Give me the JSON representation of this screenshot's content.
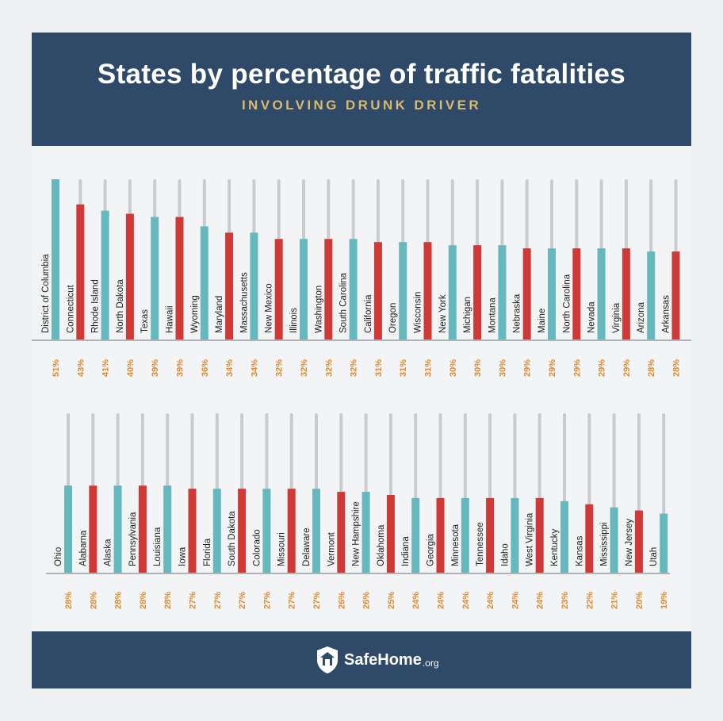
{
  "header": {
    "title": "States by percentage of traffic fatalities",
    "subtitle": "INVOLVING DRUNK DRIVER"
  },
  "footer": {
    "brand": "SafeHome",
    "brand_suffix": ".org",
    "logo_icon": "house-shield-icon"
  },
  "colors": {
    "teal": "#66b8bf",
    "red": "#cf3a37",
    "track": "#c9cbcd",
    "label": "#e08a2c",
    "header_bg": "#2e4a68",
    "subtitle": "#d9b96d"
  },
  "chart_data": {
    "type": "bar",
    "orientation": "vertical",
    "ylim": [
      0,
      51
    ],
    "panels": [
      {
        "categories": [
          "District of Columbia",
          "Connecticut",
          "Rhode Island",
          "North Dakota",
          "Texas",
          "Hawaii",
          "Wyoming",
          "Maryland",
          "Massachusetts",
          "New Mexico",
          "Illinois",
          "Washington",
          "South Carolina",
          "California",
          "Oregon",
          "Wisconsin",
          "New York",
          "Michigan",
          "Montana",
          "Nebraska",
          "Maine",
          "North Carolina",
          "Nevada",
          "Virginia",
          "Arizona",
          "Arkansas"
        ],
        "values": [
          51,
          43,
          41,
          40,
          39,
          39,
          36,
          34,
          34,
          32,
          32,
          32,
          32,
          31,
          31,
          31,
          30,
          30,
          30,
          29,
          29,
          29,
          29,
          29,
          28,
          28
        ],
        "labels": [
          "51%",
          "43%",
          "41%",
          "40%",
          "39%",
          "39%",
          "36%",
          "34%",
          "34%",
          "32%",
          "32%",
          "32%",
          "32%",
          "31%",
          "31%",
          "31%",
          "30%",
          "30%",
          "30%",
          "29%",
          "29%",
          "29%",
          "29%",
          "29%",
          "28%",
          "28%"
        ]
      },
      {
        "categories": [
          "Ohio",
          "Alabama",
          "Alaska",
          "Pennsylvania",
          "Louisiana",
          "Iowa",
          "Florida",
          "South Dakota",
          "Colorado",
          "Missouri",
          "Delaware",
          "Vermont",
          "New Hampshire",
          "Oklahoma",
          "Indiana",
          "Georgia",
          "Minnesota",
          "Tennessee",
          "Idaho",
          "West Virginia",
          "Kentucky",
          "Kansas",
          "Mississippi",
          "New Jersey",
          "Utah"
        ],
        "values": [
          28,
          28,
          28,
          28,
          28,
          27,
          27,
          27,
          27,
          27,
          27,
          26,
          26,
          25,
          24,
          24,
          24,
          24,
          24,
          24,
          23,
          22,
          21,
          20,
          19
        ],
        "labels": [
          "28%",
          "28%",
          "28%",
          "28%",
          "28%",
          "27%",
          "27%",
          "27%",
          "27%",
          "27%",
          "27%",
          "26%",
          "26%",
          "25%",
          "24%",
          "24%",
          "24%",
          "24%",
          "24%",
          "24%",
          "23%",
          "22%",
          "21%",
          "20%",
          "19%"
        ]
      }
    ]
  }
}
